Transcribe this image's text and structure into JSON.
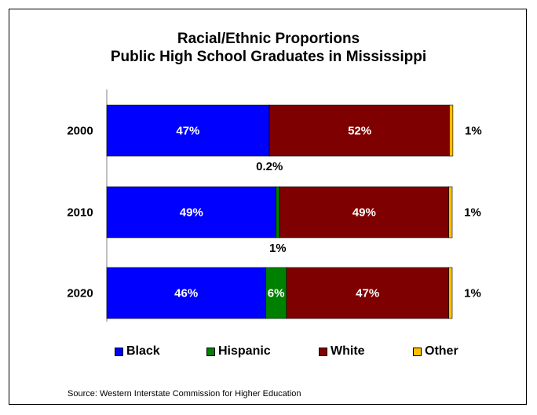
{
  "chart_data": {
    "type": "bar",
    "orientation": "horizontal",
    "stacked": true,
    "title": "Racial/Ethnic Proportions",
    "subtitle": "Public High School Graduates in Mississippi",
    "categories": [
      "2000",
      "2010",
      "2020"
    ],
    "series": [
      {
        "name": "Black",
        "color": "#0000ff",
        "values": [
          47,
          49,
          46
        ],
        "labels": [
          "47%",
          "49%",
          "46%"
        ]
      },
      {
        "name": "Hispanic",
        "color": "#008000",
        "values": [
          0.2,
          1,
          6
        ],
        "labels": [
          "0.2%",
          "1%",
          "6%"
        ]
      },
      {
        "name": "White",
        "color": "#7f0000",
        "values": [
          52,
          49,
          47
        ],
        "labels": [
          "52%",
          "49%",
          "47%"
        ]
      },
      {
        "name": "Other",
        "color": "#ffc000",
        "values": [
          1,
          1,
          1
        ],
        "labels": [
          "1%",
          "1%",
          "1%"
        ]
      }
    ],
    "xlim": [
      0,
      100
    ],
    "grid": false,
    "legend": "bottom"
  },
  "source": "Source: Western Interstate Commission for Higher Education"
}
